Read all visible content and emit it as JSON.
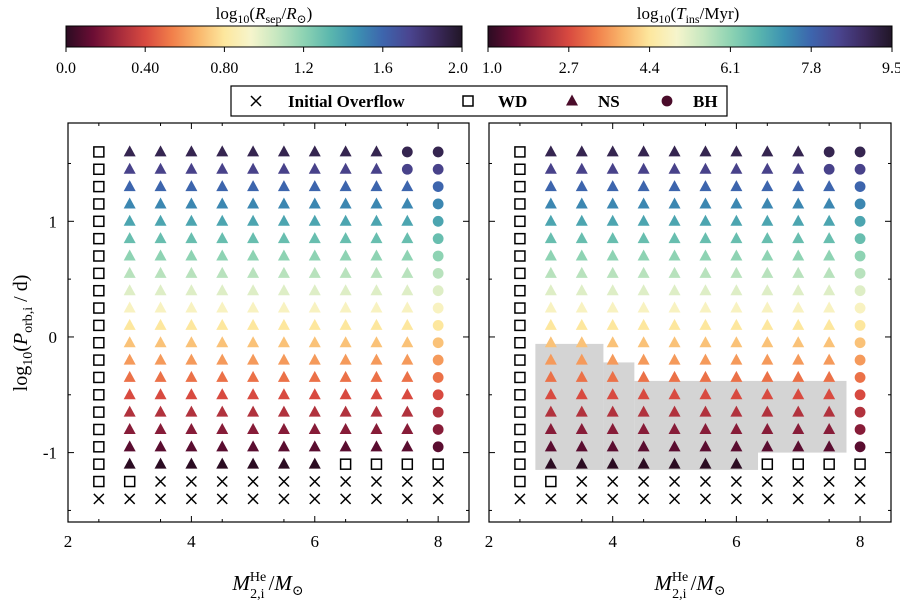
{
  "chart_data": [
    {
      "type": "scatter",
      "xlabel": "M_{2,i}^{He} / M_⊙",
      "ylabel": "log10(P_orb,i / d)",
      "xlim": [
        2.0,
        8.5
      ],
      "ylim": [
        -1.6,
        1.85
      ],
      "xticks": [
        "2",
        "4",
        "6",
        "8"
      ],
      "yticks": [
        "-1",
        "0",
        "1"
      ],
      "colorbar": {
        "label": "log10(R_sep/R_⊙)",
        "range": [
          0.0,
          2.0
        ],
        "ticks": [
          "0.0",
          "0.40",
          "0.80",
          "1.2",
          "1.6",
          "2.0"
        ]
      },
      "x_grid": [
        2.5,
        3.0,
        3.5,
        4.0,
        4.5,
        5.0,
        5.5,
        6.0,
        6.5,
        7.0,
        7.5,
        8.0
      ],
      "y_grid_min": -1.4,
      "y_grid_step": 0.15,
      "y_grid_count": 21,
      "color_by_row": [
        0.0,
        0.0,
        0.0,
        0.1,
        0.2,
        0.3,
        0.4,
        0.5,
        0.6,
        0.7,
        0.8,
        0.9,
        1.0,
        1.1,
        1.2,
        1.3,
        1.4,
        1.5,
        1.6,
        1.75,
        1.9
      ],
      "columns": [
        {
          "x": 2.5,
          "classes": "xwwwwwwwwwwwwwwwwwwww"
        },
        {
          "x": 3.0,
          "classes": "xwnnnnnnnnnnnnnnnnnnn"
        },
        {
          "x": 3.5,
          "classes": "xxnnnnnnnnnnnnnnnnnnn"
        },
        {
          "x": 4.0,
          "classes": "xxnnnnnnnnnnnnnnnnnnn"
        },
        {
          "x": 4.5,
          "classes": "xxnnnnnnnnnnnnnnnnnnn"
        },
        {
          "x": 5.0,
          "classes": "xxnnnnnnnnnnnnnnnnnnn"
        },
        {
          "x": 5.5,
          "classes": "xxnnnnnnnnnnnnnnnnnnn"
        },
        {
          "x": 6.0,
          "classes": "xxnnnnnnnnnnnnnnnnnnn"
        },
        {
          "x": 6.5,
          "classes": "xxwnnnnnnnnnnnnnnnnnn"
        },
        {
          "x": 7.0,
          "classes": "xxwnnnnnnnnnnnnnnnnnn"
        },
        {
          "x": 7.5,
          "classes": "xxwnnnnnnnnnnnnnnnnbb"
        },
        {
          "x": 8.0,
          "classes": "xxwbbbbbbbbbbbbbbbbbb"
        }
      ],
      "legend_placement": "top-center",
      "legend": [
        {
          "marker": "x",
          "label": "Initial Overflow"
        },
        {
          "marker": "square",
          "label": "WD"
        },
        {
          "marker": "triangle",
          "label": "NS"
        },
        {
          "marker": "circle",
          "label": "BH"
        }
      ]
    },
    {
      "type": "scatter",
      "xlabel": "M_{2,i}^{He} / M_⊙",
      "xlim": [
        2.0,
        8.5
      ],
      "ylim": [
        -1.6,
        1.85
      ],
      "xticks": [
        "2",
        "4",
        "6",
        "8"
      ],
      "colorbar": {
        "label": "log10(T_ins/Myr)",
        "range": [
          1.0,
          9.5
        ],
        "ticks": [
          "1.0",
          "2.7",
          "4.4",
          "6.1",
          "7.8",
          "9.5"
        ]
      },
      "same_points_as_left_panel": true,
      "shaded_region": [
        {
          "x": [
            2.75,
            3.85
          ],
          "y": [
            -1.15,
            -0.06
          ]
        },
        {
          "x": [
            3.85,
            4.35
          ],
          "y": [
            -1.15,
            -0.22
          ]
        },
        {
          "x": [
            4.35,
            7.78
          ],
          "y": [
            -1.15,
            -0.38
          ]
        }
      ],
      "shaded_cutout": {
        "x": [
          6.35,
          7.78
        ],
        "y": [
          -1.15,
          -1.0
        ]
      }
    }
  ],
  "labels": {
    "cbar_left": {
      "pre": "log",
      "sub": "10",
      "var": "R",
      "varsub": "sep",
      "mid": "/",
      "var2": "R",
      "var2sub": "⊙",
      "post": ")"
    },
    "cbar_right": {
      "pre": "log",
      "sub": "10",
      "var": "T",
      "varsub": "ins",
      "post": "/Myr)"
    },
    "xlabel": {
      "var": "M",
      "sup": "He",
      "sub": "2,i",
      "mid": "/",
      "var2": "M",
      "var2sub": "⊙"
    },
    "ylabel": {
      "pre": "log",
      "sub": "10",
      "var": "P",
      "varsub": "orb,i",
      "post": " / d)"
    }
  },
  "colors": {
    "shade": "#d4d4d4",
    "colormap": [
      "#2b0c22",
      "#6a0d34",
      "#a42a3c",
      "#d84a40",
      "#f17e4a",
      "#f9b66b",
      "#fde79e",
      "#f6f5cc",
      "#c6e7c0",
      "#8ed3b3",
      "#5bb7ae",
      "#3c92b2",
      "#3d65ad",
      "#4a4590",
      "#3c2a5e",
      "#211627"
    ]
  }
}
